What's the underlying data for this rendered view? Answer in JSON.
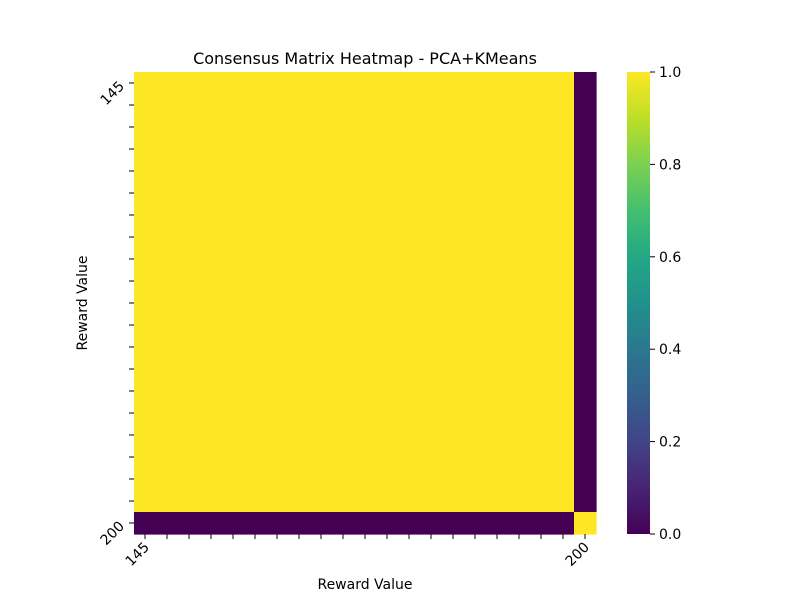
{
  "chart_data": {
    "type": "heatmap",
    "title": "Consensus Matrix Heatmap - PCA+KMeans",
    "xlabel": "Reward Value",
    "ylabel": "Reward Value",
    "n": 21,
    "x_tick_labels": [
      {
        "index": 0,
        "label": "145"
      },
      {
        "index": 20,
        "label": "200"
      }
    ],
    "y_tick_labels": [
      {
        "index": 0,
        "label": "145"
      },
      {
        "index": 20,
        "label": "200"
      }
    ],
    "cluster_of_row": [
      0,
      0,
      0,
      0,
      0,
      0,
      0,
      0,
      0,
      0,
      0,
      0,
      0,
      0,
      0,
      0,
      0,
      0,
      0,
      0,
      1
    ],
    "value_rule": "cell value = 1.0 if rows share a cluster else 0.0",
    "colorbar": {
      "colormap": "viridis",
      "min": 0.0,
      "max": 1.0,
      "ticks": [
        "0.0",
        "0.2",
        "0.4",
        "0.6",
        "0.8",
        "1.0"
      ]
    },
    "colors": {
      "low": "#440154",
      "high": "#fde725"
    },
    "grid": false
  }
}
